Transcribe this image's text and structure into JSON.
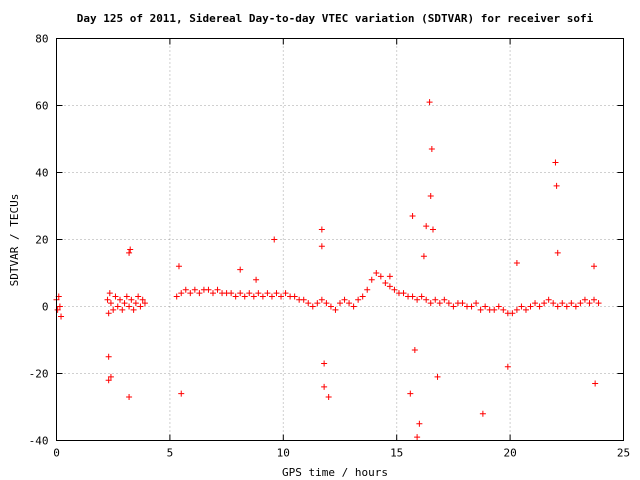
{
  "chart_data": {
    "type": "scatter",
    "title": "Day 125 of 2011, Sidereal Day-to-day VTEC variation (SDTVAR) for receiver sofi",
    "xlabel": "GPS time / hours",
    "ylabel": "SDTVAR / TECUs",
    "xlim": [
      0,
      25
    ],
    "ylim": [
      -40,
      80
    ],
    "x_ticks": [
      0,
      5,
      10,
      15,
      20,
      25
    ],
    "y_ticks": [
      -40,
      -20,
      0,
      20,
      40,
      60,
      80
    ],
    "x_tick_labels": [
      "0",
      "5",
      "10",
      "15",
      "20",
      "25"
    ],
    "y_tick_labels": [
      "-40",
      "-20",
      "0",
      "20",
      "40",
      "60",
      "80"
    ],
    "grid": true,
    "marker": "+",
    "color": "#ff0000",
    "series": [
      {
        "name": "SDTVAR",
        "x": [
          0.0,
          0.05,
          0.1,
          0.15,
          0.2,
          2.25,
          2.3,
          2.35,
          2.4,
          2.5,
          2.6,
          2.7,
          2.8,
          2.9,
          3.0,
          3.1,
          3.2,
          3.3,
          3.4,
          3.5,
          3.6,
          3.7,
          3.8,
          3.9,
          3.2,
          3.25,
          2.3,
          2.4,
          3.2,
          5.3,
          5.5,
          5.7,
          5.9,
          6.1,
          6.3,
          6.5,
          6.7,
          6.9,
          7.1,
          7.3,
          7.5,
          7.7,
          7.9,
          8.1,
          8.3,
          8.5,
          8.7,
          8.9,
          9.1,
          9.3,
          9.5,
          9.7,
          9.9,
          10.1,
          10.3,
          10.5,
          10.7,
          10.9,
          11.1,
          11.3,
          11.5,
          11.7,
          11.9,
          12.1,
          12.3,
          12.5,
          12.7,
          12.9,
          13.1,
          13.3,
          13.5,
          13.7,
          13.9,
          14.1,
          14.3,
          14.5,
          14.7,
          14.9,
          15.1,
          15.3,
          15.5,
          15.7,
          15.9,
          16.1,
          16.3,
          16.5,
          16.7,
          16.9,
          17.1,
          17.3,
          17.5,
          17.7,
          17.9,
          18.1,
          18.3,
          18.5,
          18.7,
          18.9,
          19.1,
          19.3,
          19.5,
          19.7,
          19.9,
          20.1,
          20.3,
          20.5,
          20.7,
          20.9,
          21.1,
          21.3,
          21.5,
          21.7,
          21.9,
          22.1,
          22.3,
          22.5,
          22.7,
          22.9,
          23.1,
          23.3,
          23.5,
          23.7,
          23.9,
          5.5,
          9.6,
          11.7,
          12.0,
          11.8,
          15.7,
          16.0,
          15.9,
          16.3,
          16.5,
          16.55,
          16.45,
          16.6,
          16.8,
          18.8,
          20.3,
          22.0,
          22.05,
          22.1,
          23.75,
          2.3,
          11.8,
          11.7,
          15.6,
          15.8,
          19.9,
          23.7,
          5.4,
          8.1,
          8.8,
          14.7,
          16.2
        ],
        "y": [
          2,
          -1,
          3,
          0,
          -3,
          2,
          -2,
          4,
          1,
          -1,
          3,
          0,
          2,
          -1,
          1,
          3,
          0,
          2,
          -1,
          1,
          3,
          0,
          2,
          1,
          16,
          17,
          -15,
          -21,
          -27,
          3,
          4,
          5,
          4,
          5,
          4,
          5,
          5,
          4,
          5,
          4,
          4,
          4,
          3,
          4,
          3,
          4,
          3,
          4,
          3,
          4,
          3,
          4,
          3,
          4,
          3,
          3,
          2,
          2,
          1,
          0,
          1,
          2,
          1,
          0,
          -1,
          1,
          2,
          1,
          0,
          2,
          3,
          5,
          8,
          10,
          9,
          7,
          6,
          5,
          4,
          4,
          3,
          3,
          2,
          3,
          2,
          1,
          2,
          1,
          2,
          1,
          0,
          1,
          1,
          0,
          0,
          1,
          -1,
          0,
          -1,
          -1,
          0,
          -1,
          -2,
          -2,
          -1,
          0,
          -1,
          0,
          1,
          0,
          1,
          2,
          1,
          0,
          1,
          0,
          1,
          0,
          1,
          2,
          1,
          2,
          1,
          -26,
          20,
          23,
          -27,
          -24,
          27,
          -35,
          -39,
          24,
          33,
          47,
          61,
          23,
          -21,
          -32,
          13,
          43,
          36,
          16,
          -23,
          -22,
          -17,
          18,
          -26,
          -13,
          -18,
          12,
          12,
          11,
          8,
          9,
          15
        ]
      }
    ]
  }
}
